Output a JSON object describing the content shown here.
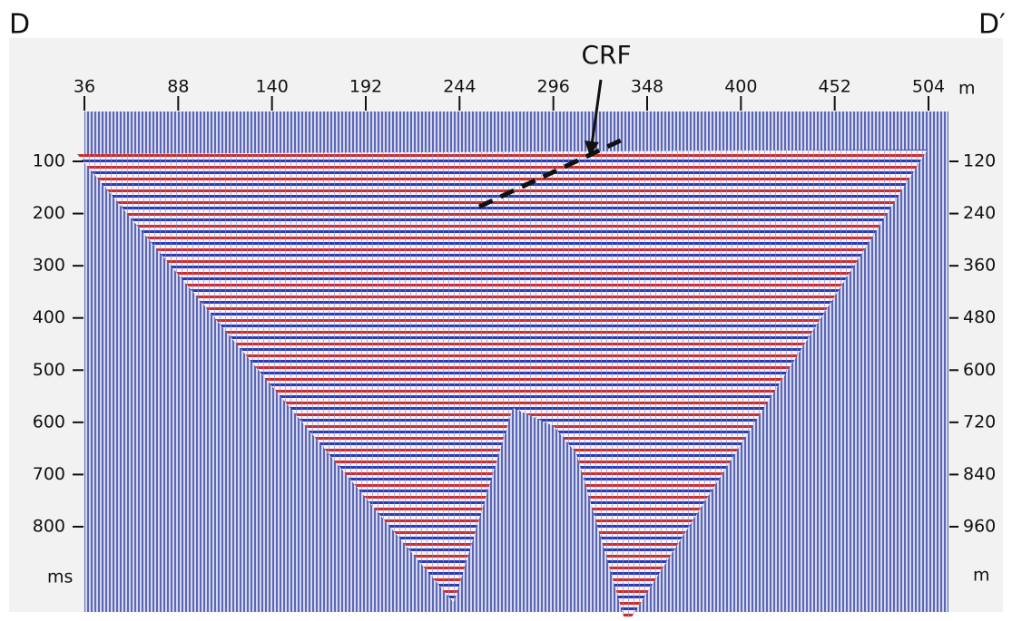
{
  "labels": {
    "left": "D",
    "right": "D′",
    "annotation": "CRF"
  },
  "top_axis": {
    "ticks": [
      36,
      88,
      140,
      192,
      244,
      296,
      348,
      400,
      452,
      504
    ],
    "unit": "m"
  },
  "left_axis": {
    "ticks": [
      100,
      200,
      300,
      400,
      500,
      600,
      700,
      800
    ],
    "unit": "ms"
  },
  "right_axis": {
    "ticks": [
      120,
      240,
      360,
      480,
      600,
      720,
      840,
      960
    ],
    "unit": "m"
  }
}
